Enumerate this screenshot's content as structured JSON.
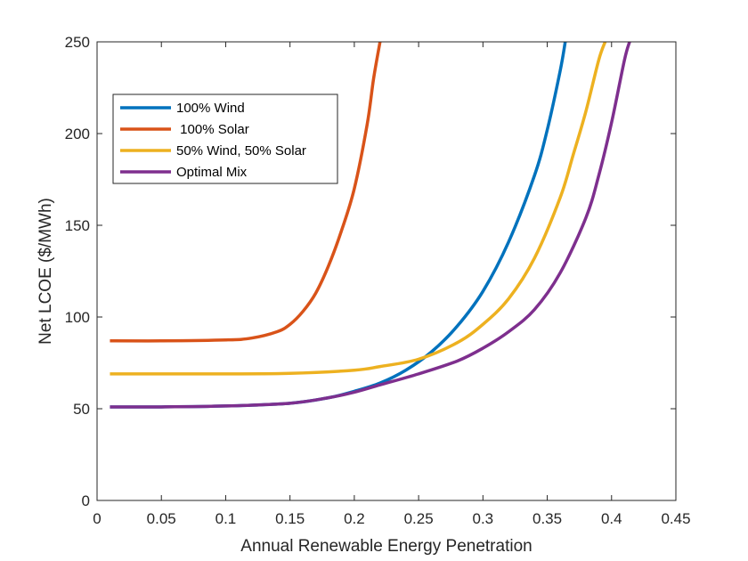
{
  "chart_data": {
    "type": "line",
    "xlabel": "Annual Renewable Energy Penetration",
    "ylabel": "Net LCOE ($/MWh)",
    "xlim": [
      0,
      0.45
    ],
    "ylim": [
      0,
      250
    ],
    "x_ticks": [
      "0",
      "0.05",
      "0.1",
      "0.15",
      "0.2",
      "0.25",
      "0.3",
      "0.35",
      "0.4",
      "0.45"
    ],
    "y_ticks": [
      "0",
      "50",
      "100",
      "150",
      "200",
      "250"
    ],
    "grid": false,
    "legend_position": "top-left",
    "series": [
      {
        "name": "100% Wind",
        "color": "#0072BD",
        "x": [
          0.01,
          0.05,
          0.1,
          0.15,
          0.18,
          0.2,
          0.22,
          0.24,
          0.26,
          0.28,
          0.3,
          0.32,
          0.34,
          0.35,
          0.36,
          0.364
        ],
        "y": [
          51,
          51,
          51.5,
          53,
          56,
          59.5,
          64,
          71,
          81,
          95,
          114,
          141,
          177,
          202,
          234,
          250
        ]
      },
      {
        "name": " 100% Solar",
        "color": "#D95319",
        "x": [
          0.01,
          0.05,
          0.1,
          0.12,
          0.14,
          0.15,
          0.16,
          0.17,
          0.18,
          0.19,
          0.2,
          0.21,
          0.215,
          0.22
        ],
        "y": [
          87,
          87,
          87.5,
          88.5,
          92,
          96,
          103,
          113,
          128,
          147,
          170,
          205,
          230,
          250
        ]
      },
      {
        "name": "50% Wind, 50% Solar",
        "color": "#EDB120",
        "x": [
          0.01,
          0.05,
          0.1,
          0.15,
          0.2,
          0.22,
          0.25,
          0.28,
          0.3,
          0.32,
          0.34,
          0.36,
          0.37,
          0.38,
          0.39,
          0.395
        ],
        "y": [
          69,
          69,
          69,
          69.3,
          71,
          73,
          77,
          86,
          96,
          110,
          132,
          165,
          188,
          212,
          240,
          250
        ]
      },
      {
        "name": "Optimal Mix",
        "color": "#7E2F8E",
        "x": [
          0.01,
          0.05,
          0.1,
          0.15,
          0.18,
          0.2,
          0.22,
          0.25,
          0.28,
          0.3,
          0.32,
          0.34,
          0.36,
          0.38,
          0.39,
          0.4,
          0.41,
          0.414
        ],
        "y": [
          51,
          51,
          51.5,
          53,
          56,
          59,
          63,
          69,
          76,
          83,
          92,
          104,
          124,
          154,
          177,
          206,
          240,
          250
        ]
      }
    ]
  }
}
